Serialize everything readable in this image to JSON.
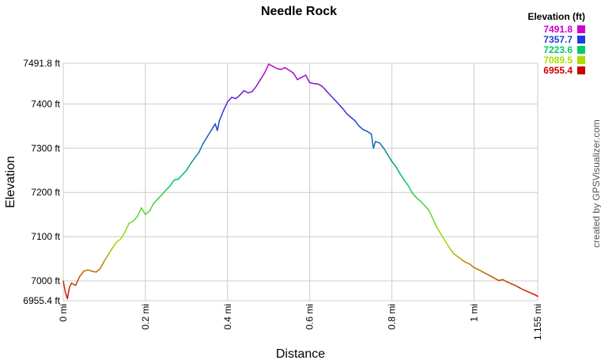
{
  "chart_data": {
    "type": "line",
    "title": "Needle Rock",
    "xlabel": "Distance",
    "ylabel": "Elevation",
    "xlim": [
      0,
      1.155
    ],
    "ylim": [
      6955.4,
      7491.8
    ],
    "x_ticks": [
      {
        "value": 0,
        "label": "0 mi"
      },
      {
        "value": 0.2,
        "label": "0.2 mi"
      },
      {
        "value": 0.4,
        "label": "0.4 mi"
      },
      {
        "value": 0.6,
        "label": "0.6 mi"
      },
      {
        "value": 0.8,
        "label": "0.8 mi"
      },
      {
        "value": 1.0,
        "label": "1 mi"
      },
      {
        "value": 1.155,
        "label": "1.155 mi"
      }
    ],
    "y_ticks": [
      {
        "value": 6955.4,
        "label": "6955.4 ft"
      },
      {
        "value": 7000,
        "label": "7000 ft"
      },
      {
        "value": 7100,
        "label": "7100 ft"
      },
      {
        "value": 7200,
        "label": "7200 ft"
      },
      {
        "value": 7300,
        "label": "7300 ft"
      },
      {
        "value": 7400,
        "label": "7400 ft"
      },
      {
        "value": 7491.8,
        "label": "7491.8 ft"
      }
    ],
    "grid": true,
    "legend": {
      "title": "Elevation (ft)",
      "placement": "top-right",
      "entries": [
        {
          "label": "7491.8",
          "color": "#cc00cc"
        },
        {
          "label": "7357.7",
          "color": "#1a3fd6"
        },
        {
          "label": "7223.6",
          "color": "#00cc66"
        },
        {
          "label": "7089.5",
          "color": "#aadd00"
        },
        {
          "label": "6955.4",
          "color": "#cc0000"
        }
      ]
    },
    "series": [
      {
        "x": [
          0,
          0.005,
          0.01,
          0.015,
          0.02,
          0.03,
          0.04,
          0.05,
          0.06,
          0.07,
          0.08,
          0.09,
          0.1,
          0.11,
          0.12,
          0.13,
          0.14,
          0.15,
          0.16,
          0.17,
          0.18,
          0.19,
          0.2,
          0.21,
          0.22,
          0.23,
          0.24,
          0.25,
          0.26,
          0.27,
          0.28,
          0.29,
          0.3,
          0.31,
          0.32,
          0.33,
          0.34,
          0.35,
          0.36,
          0.37,
          0.375,
          0.38,
          0.39,
          0.4,
          0.41,
          0.42,
          0.43,
          0.44,
          0.45,
          0.46,
          0.47,
          0.48,
          0.49,
          0.5,
          0.51,
          0.52,
          0.53,
          0.54,
          0.55,
          0.56,
          0.57,
          0.58,
          0.59,
          0.6,
          0.61,
          0.62,
          0.63,
          0.64,
          0.65,
          0.66,
          0.67,
          0.68,
          0.69,
          0.7,
          0.71,
          0.72,
          0.73,
          0.74,
          0.75,
          0.755,
          0.76,
          0.77,
          0.78,
          0.79,
          0.8,
          0.81,
          0.82,
          0.83,
          0.84,
          0.85,
          0.86,
          0.87,
          0.88,
          0.89,
          0.9,
          0.91,
          0.92,
          0.93,
          0.94,
          0.95,
          0.96,
          0.97,
          0.98,
          0.99,
          1.0,
          1.01,
          1.02,
          1.03,
          1.04,
          1.05,
          1.06,
          1.07,
          1.08,
          1.09,
          1.1,
          1.11,
          1.12,
          1.13,
          1.14,
          1.15,
          1.155
        ],
        "y": [
          7000,
          6975,
          6960,
          6985,
          6995,
          6990,
          7010,
          7022,
          7025,
          7022,
          7020,
          7028,
          7045,
          7060,
          7075,
          7088,
          7095,
          7110,
          7130,
          7135,
          7145,
          7165,
          7150,
          7158,
          7175,
          7185,
          7195,
          7205,
          7215,
          7228,
          7230,
          7240,
          7250,
          7265,
          7278,
          7290,
          7310,
          7325,
          7340,
          7355,
          7340,
          7362,
          7385,
          7405,
          7415,
          7412,
          7420,
          7430,
          7425,
          7428,
          7440,
          7455,
          7470,
          7490,
          7485,
          7480,
          7478,
          7482,
          7476,
          7470,
          7455,
          7460,
          7465,
          7448,
          7446,
          7445,
          7440,
          7430,
          7420,
          7410,
          7400,
          7390,
          7378,
          7370,
          7362,
          7350,
          7342,
          7338,
          7332,
          7300,
          7315,
          7312,
          7300,
          7285,
          7270,
          7258,
          7242,
          7228,
          7215,
          7198,
          7188,
          7180,
          7170,
          7160,
          7140,
          7120,
          7105,
          7090,
          7075,
          7062,
          7055,
          7048,
          7042,
          7038,
          7030,
          7026,
          7021,
          7016,
          7011,
          7006,
          7001,
          7003,
          6998,
          6994,
          6990,
          6985,
          6980,
          6976,
          6972,
          6968,
          6965
        ]
      }
    ],
    "credit": "created by GPSVisualizer.com"
  }
}
